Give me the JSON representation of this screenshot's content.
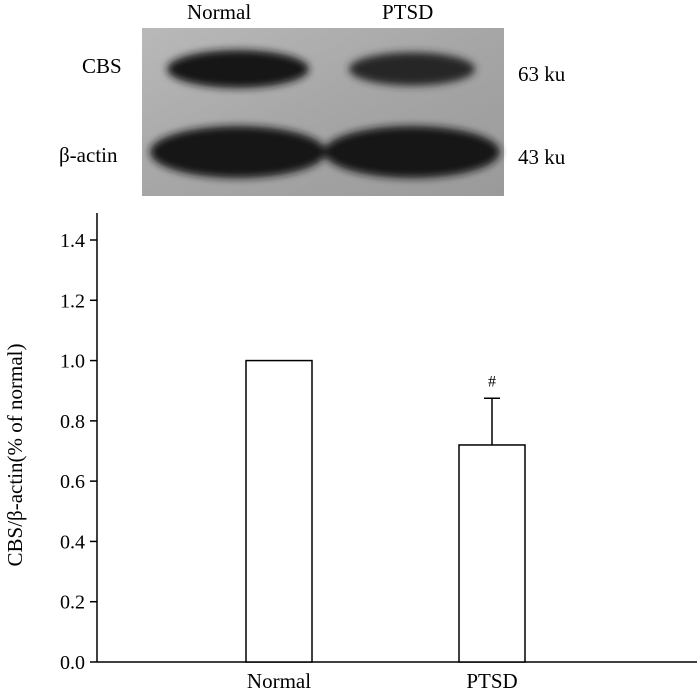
{
  "blot": {
    "lane_labels": [
      "Normal",
      "PTSD"
    ],
    "rows": [
      {
        "protein": "CBS",
        "size": "63 ku",
        "band_intensity": [
          1.0,
          0.72
        ]
      },
      {
        "protein": "β-actin",
        "size": "43 ku",
        "band_intensity": [
          1.0,
          1.0
        ]
      }
    ]
  },
  "chart_data": {
    "type": "bar",
    "categories": [
      "Normal",
      "PTSD"
    ],
    "values": [
      1.0,
      0.72
    ],
    "errors": [
      0,
      0.155
    ],
    "annotations": [
      "",
      "#"
    ],
    "title": "",
    "xlabel": "",
    "ylabel": "CBS/β-actin(% of normal)",
    "ylim": [
      0,
      1.4
    ],
    "yticks": [
      "0.0",
      "0.2",
      "0.4",
      "0.6",
      "0.8",
      "1.0",
      "1.2",
      "1.4"
    ],
    "grid": false,
    "bar_fill": "#ffffff",
    "bar_stroke": "#000000"
  }
}
